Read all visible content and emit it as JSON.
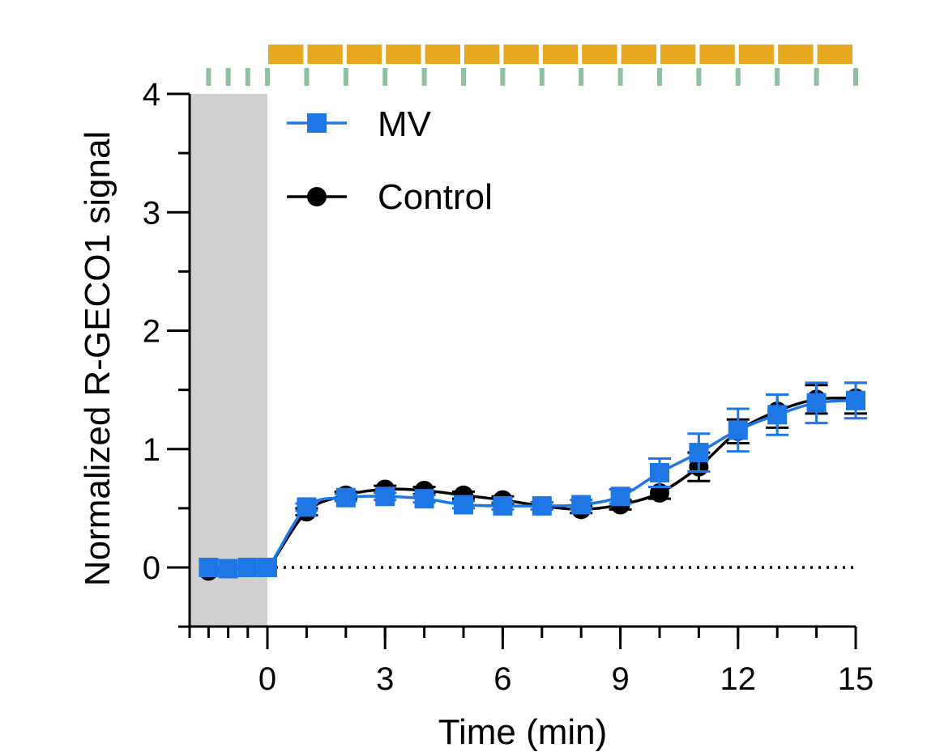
{
  "chart_data": {
    "type": "line",
    "xlabel": "Time (min)",
    "ylabel": "Normalized R-GECO1 signal",
    "xlim": [
      -2,
      15
    ],
    "ylim": [
      -0.5,
      4
    ],
    "xticks": [
      0,
      3,
      6,
      9,
      12,
      15
    ],
    "xminor": [
      -2,
      -1.5,
      -1,
      -0.5,
      0,
      1,
      2,
      3,
      4,
      5,
      6,
      7,
      8,
      9,
      10,
      11,
      12,
      13,
      14,
      15
    ],
    "yticks": [
      0,
      1,
      2,
      3,
      4
    ],
    "yminor": [
      -0.5,
      0.5,
      1.5,
      2.5,
      3.5
    ],
    "baseline_shade": [
      -2,
      0
    ],
    "reference_line_y": 0,
    "stimulus_blocks": {
      "x": [
        0,
        15
      ],
      "count": 15,
      "color": "#E6A81F"
    },
    "sampling_marks": {
      "x": [
        -1.5,
        -1,
        -0.5,
        0,
        1,
        2,
        3,
        4,
        5,
        6,
        7,
        8,
        9,
        10,
        11,
        12,
        13,
        14,
        15
      ],
      "color": "#8FC1A0"
    },
    "series": [
      {
        "name": "Control",
        "color": "#000000",
        "marker": "circle",
        "x": [
          -1.5,
          -1,
          -0.5,
          0,
          1,
          2,
          3,
          4,
          5,
          6,
          7,
          8,
          9,
          10,
          11,
          12,
          13,
          14,
          15
        ],
        "y": [
          -0.03,
          -0.01,
          0.0,
          0.0,
          0.47,
          0.61,
          0.66,
          0.65,
          0.61,
          0.57,
          0.52,
          0.49,
          0.53,
          0.63,
          0.85,
          1.15,
          1.32,
          1.42,
          1.43
        ],
        "err": [
          0.02,
          0.02,
          0.02,
          0.02,
          0.03,
          0.03,
          0.03,
          0.03,
          0.03,
          0.03,
          0.03,
          0.03,
          0.04,
          0.05,
          0.12,
          0.1,
          0.14,
          0.12,
          0.13
        ]
      },
      {
        "name": "MV",
        "color": "#1F77E6",
        "marker": "square",
        "x": [
          -1.5,
          -1,
          -0.5,
          0,
          1,
          2,
          3,
          4,
          5,
          6,
          7,
          8,
          9,
          10,
          11,
          12,
          13,
          14,
          15
        ],
        "y": [
          0.0,
          -0.01,
          0.0,
          0.0,
          0.51,
          0.59,
          0.6,
          0.58,
          0.53,
          0.52,
          0.52,
          0.53,
          0.6,
          0.8,
          0.97,
          1.16,
          1.29,
          1.39,
          1.41
        ],
        "err": [
          0.02,
          0.02,
          0.02,
          0.02,
          0.03,
          0.03,
          0.03,
          0.03,
          0.03,
          0.03,
          0.03,
          0.04,
          0.06,
          0.12,
          0.16,
          0.18,
          0.17,
          0.17,
          0.15
        ]
      }
    ],
    "legend": [
      {
        "name": "MV",
        "color": "#1F77E6",
        "marker": "square"
      },
      {
        "name": "Control",
        "color": "#000000",
        "marker": "circle"
      }
    ]
  }
}
